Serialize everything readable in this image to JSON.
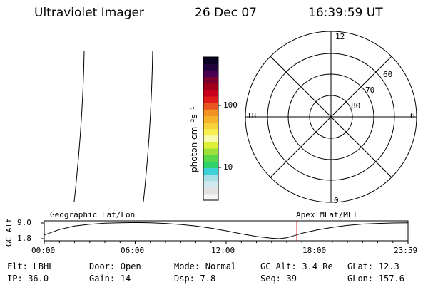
{
  "header": {
    "title": "Ultraviolet Imager",
    "date": "26 Dec 07",
    "time": "16:39:59 UT"
  },
  "colorbar": {
    "unit_label": "photon cm⁻²s⁻¹",
    "tick_labels": [
      "100",
      "10"
    ],
    "tick_values": [
      100,
      10
    ],
    "range": [
      2,
      400
    ],
    "scale": "log",
    "colors": [
      "#f5f5f5",
      "#e2e2e2",
      "#cfe9ee",
      "#a8dfe6",
      "#3fd1d8",
      "#2fd36a",
      "#59d94a",
      "#9be13a",
      "#dff038",
      "#f9f9b0",
      "#f7f050",
      "#f7d23a",
      "#f5b22a",
      "#f29022",
      "#e8551e",
      "#de1a1a",
      "#c8001e",
      "#a0001c",
      "#7a0030",
      "#4a0050",
      "#22003a",
      "#0a0020"
    ]
  },
  "polar": {
    "mlt_labels": [
      "12",
      "18",
      "6",
      "0"
    ],
    "lat_labels": [
      "60",
      "70",
      "80"
    ]
  },
  "timeline": {
    "left_label": "Geographic Lat/Lon",
    "right_label": "Apex MLat/MLT",
    "axis_title": "GC Alt",
    "y_labels": [
      "9.0",
      "1.8"
    ],
    "y_range": [
      1.8,
      9.0
    ],
    "x_labels": [
      "00:00",
      "06:00",
      "12:00",
      "18:00",
      "23:59"
    ],
    "current_marker_hour": 16.67,
    "marker_color": "#dd0000",
    "altitude_curve": {
      "hours": [
        0,
        1,
        2,
        3,
        4,
        5,
        6,
        7,
        8,
        9,
        10,
        11,
        12,
        13,
        14,
        15,
        15.5,
        16,
        16.5,
        17,
        18,
        19,
        20,
        21,
        22,
        23,
        23.98
      ],
      "gc_alt": [
        3.5,
        6.0,
        7.6,
        8.4,
        8.9,
        9.1,
        9.2,
        9.1,
        8.8,
        8.3,
        7.6,
        6.6,
        5.4,
        4.0,
        2.8,
        2.0,
        1.8,
        2.2,
        3.2,
        4.3,
        5.8,
        7.0,
        7.9,
        8.5,
        8.8,
        9.0,
        9.1
      ]
    }
  },
  "footer": {
    "row1": [
      {
        "label": "Flt:",
        "value": "LBHL"
      },
      {
        "label": "Door:",
        "value": "Open"
      },
      {
        "label": "Mode:",
        "value": "Normal"
      },
      {
        "label": "GC Alt:",
        "value": "3.4 Re"
      },
      {
        "label": "GLat:",
        "value": "12.3"
      }
    ],
    "row2": [
      {
        "label": "IP:",
        "value": "36.0"
      },
      {
        "label": "Gain:",
        "value": "14"
      },
      {
        "label": "Dsp:",
        "value": "7.8"
      },
      {
        "label": "Seq:",
        "value": "39"
      },
      {
        "label": "GLon:",
        "value": "157.6"
      }
    ]
  }
}
